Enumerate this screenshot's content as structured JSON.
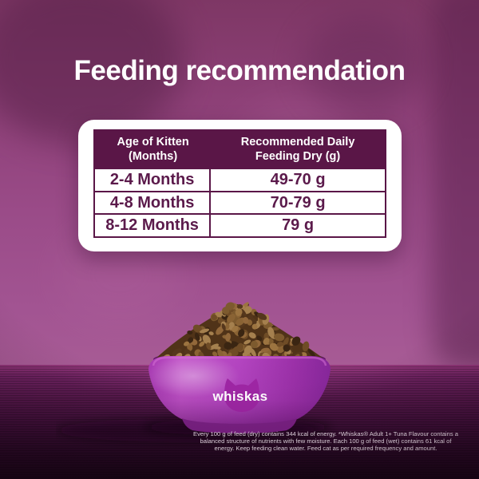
{
  "title": "Feeding recommendation",
  "table": {
    "col1_header": [
      "Age of Kitten",
      "(Months)"
    ],
    "col2_header": [
      "Recommended Daily",
      "Feeding Dry (g)"
    ],
    "rows": [
      {
        "age": "2-4 Months",
        "amount": "49-70 g"
      },
      {
        "age": "4-8 Months",
        "amount": "70-79 g"
      },
      {
        "age": "8-12 Months",
        "amount": "79 g"
      }
    ]
  },
  "bowl": {
    "brand": "whiskas",
    "bowl_color": "#b344be",
    "cat_head_color": "#9d26a3"
  },
  "footnote": {
    "lines": [
      "Every 100 g of feed (dry) contains 344 kcal of energy. *Whiskas® Adult 1+ Tuna Flavour contains a",
      "balanced structure of nutrients with few moisture. Each 100 g of feed (wet) contains 61 kcal of",
      "energy. Keep feeding clean water. Feed cat as per required frequency and amount."
    ]
  },
  "colors": {
    "header_bg": "#5a1647",
    "body_text": "#5b1a4b",
    "wall": "#9a4b88",
    "accent_white": "#ffffff"
  }
}
